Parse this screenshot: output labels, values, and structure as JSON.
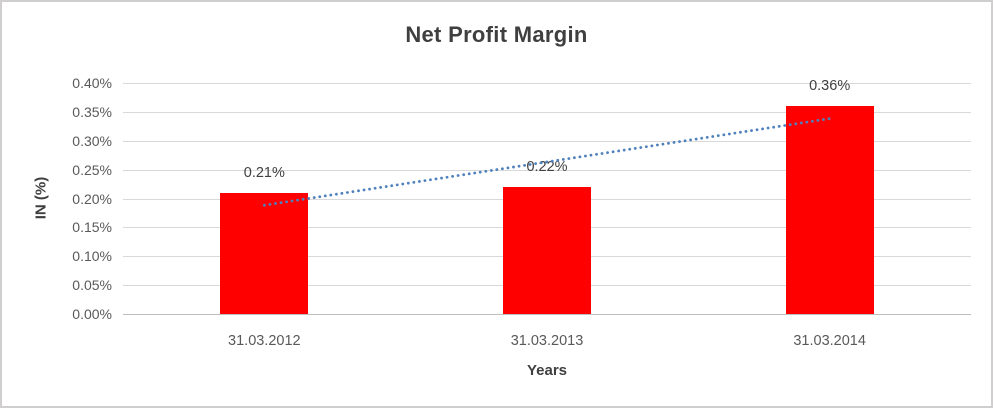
{
  "frame": {
    "background": "#ffffff",
    "border_color": "#d0cece"
  },
  "chart_data": {
    "type": "bar",
    "title": "Net Profit Margin",
    "xlabel": "Years",
    "ylabel": "IN (%)",
    "categories": [
      "31.03.2012",
      "31.03.2013",
      "31.03.2014"
    ],
    "series": [
      {
        "name": "Net Profit Margin",
        "values": [
          0.21,
          0.22,
          0.36
        ],
        "data_labels": [
          "0.21%",
          "0.22%",
          "0.36%"
        ],
        "color": "#ff0000"
      }
    ],
    "y_ticks": [
      "0.40%",
      "0.35%",
      "0.30%",
      "0.25%",
      "0.20%",
      "0.15%",
      "0.10%",
      "0.05%",
      "0.00%"
    ],
    "ylim": [
      0,
      0.4
    ],
    "y_tick_step": 0.05,
    "grid": true,
    "legend": "none",
    "trendline": {
      "type": "linear",
      "style": "dotted",
      "color": "#4f81bd"
    },
    "colors": {
      "title": "#3f3f3f",
      "axis_title": "#3f3f3f",
      "tick_label": "#595959",
      "data_label": "#404040",
      "gridline": "#d9d9d9",
      "axis_line": "#bfbfbf",
      "bar": "#ff0000"
    }
  }
}
